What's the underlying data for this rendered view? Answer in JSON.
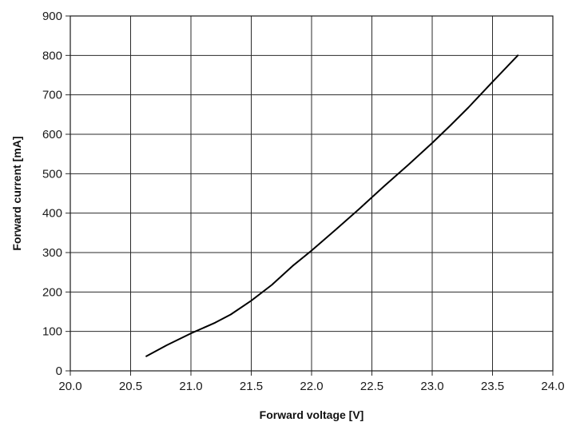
{
  "chart_data": {
    "type": "line",
    "title": "",
    "xlabel": "Forward voltage [V]",
    "ylabel": "Forward current [mA]",
    "xlim": [
      20.0,
      24.0
    ],
    "ylim": [
      0,
      900
    ],
    "xticks": [
      "20.0",
      "20.5",
      "21.0",
      "21.5",
      "22.0",
      "22.5",
      "23.0",
      "23.5",
      "24.0"
    ],
    "yticks": [
      "0",
      "100",
      "200",
      "300",
      "400",
      "500",
      "600",
      "700",
      "800",
      "900"
    ],
    "grid": true,
    "legend": "none",
    "series": [
      {
        "color": "#000000",
        "x": [
          20.63,
          20.8,
          21.0,
          21.2,
          21.33,
          21.5,
          21.67,
          21.85,
          22.0,
          22.2,
          22.4,
          22.6,
          22.8,
          23.0,
          23.15,
          23.3,
          23.5,
          23.71
        ],
        "y": [
          37,
          65,
          95,
          122,
          143,
          178,
          218,
          268,
          305,
          358,
          412,
          468,
          522,
          578,
          622,
          668,
          733,
          800
        ]
      }
    ]
  }
}
